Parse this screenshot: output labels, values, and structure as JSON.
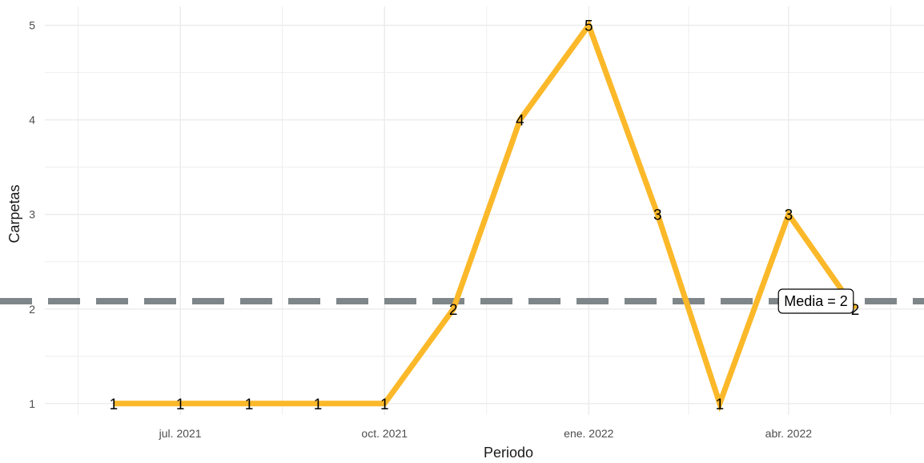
{
  "chart_data": {
    "type": "line",
    "xlabel": "Periodo",
    "ylabel": "Carpetas",
    "x": [
      "2021-06",
      "2021-07",
      "2021-08",
      "2021-09",
      "2021-10",
      "2021-11",
      "2021-12",
      "2022-01",
      "2022-02",
      "2022-03",
      "2022-04",
      "2022-05"
    ],
    "series": [
      {
        "values": [
          1,
          1,
          1,
          1,
          1,
          2,
          4,
          5,
          3,
          1,
          3,
          2
        ]
      }
    ],
    "x_ticks": [
      {
        "date": "2021-07",
        "label": "jul. 2021"
      },
      {
        "date": "2021-10",
        "label": "oct. 2021"
      },
      {
        "date": "2022-01",
        "label": "ene. 2022"
      },
      {
        "date": "2022-04",
        "label": "abr. 2022"
      }
    ],
    "y_ticks": [
      1,
      2,
      3,
      4,
      5
    ],
    "ylim": [
      0.88,
      5.2
    ],
    "xlim": [
      "2021-05",
      "2022-06"
    ],
    "mean_line": {
      "value": 2.083,
      "label": "Media = 2"
    },
    "grid": true,
    "legend": "none"
  },
  "colors": {
    "line": "#fbb829",
    "mean_line": "#7f868a",
    "grid": "#ebebeb",
    "background": "#ffffff"
  }
}
